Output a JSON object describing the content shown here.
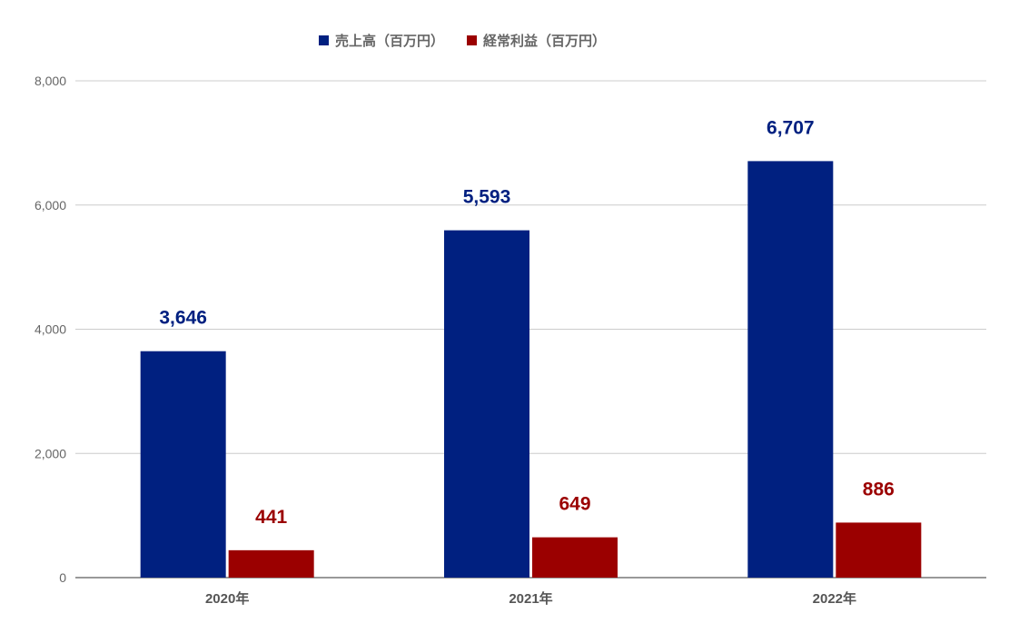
{
  "chart_data": {
    "type": "bar",
    "categories": [
      "2020年",
      "2021年",
      "2022年"
    ],
    "series": [
      {
        "name": "売上高（百万円）",
        "values": [
          3646,
          5593,
          6707
        ],
        "labels": [
          "3,646",
          "5,593",
          "6,707"
        ],
        "color": "#002080"
      },
      {
        "name": "経常利益（百万円）",
        "values": [
          441,
          649,
          886
        ],
        "labels": [
          "441",
          "649",
          "886"
        ],
        "color": "#9b0000"
      }
    ],
    "title": "",
    "xlabel": "",
    "ylabel": "",
    "ylim": [
      0,
      8000
    ],
    "yticks": [
      0,
      2000,
      4000,
      6000,
      8000
    ],
    "ytick_labels": [
      "0",
      "2,000",
      "4,000",
      "6,000",
      "8,000"
    ],
    "grid": true,
    "legend_position": "top-center"
  }
}
